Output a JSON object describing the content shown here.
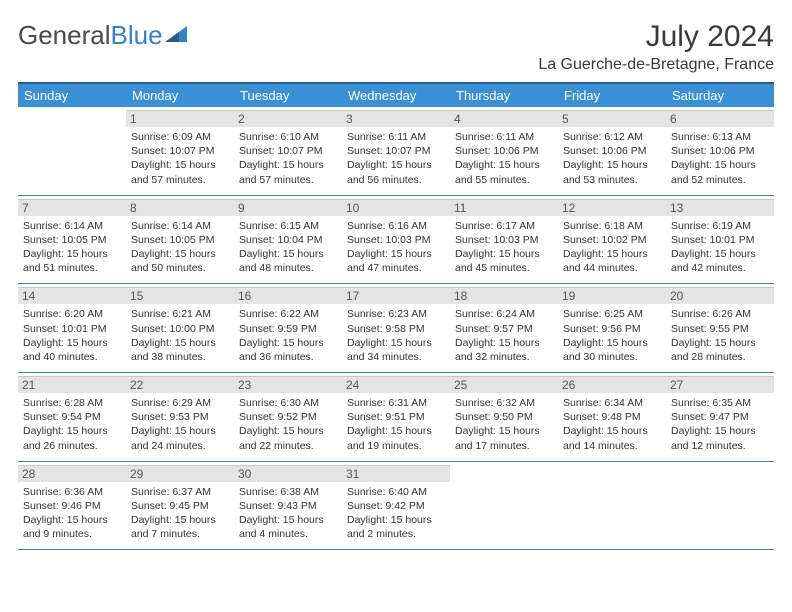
{
  "logo": {
    "part1": "General",
    "part2": "Blue"
  },
  "title": "July 2024",
  "location": "La Guerche-de-Bretagne, France",
  "colors": {
    "header_bg": "#3b8fd4",
    "header_border": "#2a5a8a",
    "daynum_bg": "#e4e4e4",
    "cell_border": "#4a7ba8",
    "text": "#333333",
    "logo_gray": "#4a4a4a",
    "logo_blue": "#3b7fc4"
  },
  "typography": {
    "title_fontsize": 30,
    "location_fontsize": 16,
    "dayheader_fontsize": 13,
    "daynum_fontsize": 12,
    "body_fontsize": 10.5
  },
  "day_headers": [
    "Sunday",
    "Monday",
    "Tuesday",
    "Wednesday",
    "Thursday",
    "Friday",
    "Saturday"
  ],
  "weeks": [
    [
      {
        "num": "",
        "lines": []
      },
      {
        "num": "1",
        "lines": [
          "Sunrise: 6:09 AM",
          "Sunset: 10:07 PM",
          "Daylight: 15 hours",
          "and 57 minutes."
        ]
      },
      {
        "num": "2",
        "lines": [
          "Sunrise: 6:10 AM",
          "Sunset: 10:07 PM",
          "Daylight: 15 hours",
          "and 57 minutes."
        ]
      },
      {
        "num": "3",
        "lines": [
          "Sunrise: 6:11 AM",
          "Sunset: 10:07 PM",
          "Daylight: 15 hours",
          "and 56 minutes."
        ]
      },
      {
        "num": "4",
        "lines": [
          "Sunrise: 6:11 AM",
          "Sunset: 10:06 PM",
          "Daylight: 15 hours",
          "and 55 minutes."
        ]
      },
      {
        "num": "5",
        "lines": [
          "Sunrise: 6:12 AM",
          "Sunset: 10:06 PM",
          "Daylight: 15 hours",
          "and 53 minutes."
        ]
      },
      {
        "num": "6",
        "lines": [
          "Sunrise: 6:13 AM",
          "Sunset: 10:06 PM",
          "Daylight: 15 hours",
          "and 52 minutes."
        ]
      }
    ],
    [
      {
        "num": "7",
        "lines": [
          "Sunrise: 6:14 AM",
          "Sunset: 10:05 PM",
          "Daylight: 15 hours",
          "and 51 minutes."
        ]
      },
      {
        "num": "8",
        "lines": [
          "Sunrise: 6:14 AM",
          "Sunset: 10:05 PM",
          "Daylight: 15 hours",
          "and 50 minutes."
        ]
      },
      {
        "num": "9",
        "lines": [
          "Sunrise: 6:15 AM",
          "Sunset: 10:04 PM",
          "Daylight: 15 hours",
          "and 48 minutes."
        ]
      },
      {
        "num": "10",
        "lines": [
          "Sunrise: 6:16 AM",
          "Sunset: 10:03 PM",
          "Daylight: 15 hours",
          "and 47 minutes."
        ]
      },
      {
        "num": "11",
        "lines": [
          "Sunrise: 6:17 AM",
          "Sunset: 10:03 PM",
          "Daylight: 15 hours",
          "and 45 minutes."
        ]
      },
      {
        "num": "12",
        "lines": [
          "Sunrise: 6:18 AM",
          "Sunset: 10:02 PM",
          "Daylight: 15 hours",
          "and 44 minutes."
        ]
      },
      {
        "num": "13",
        "lines": [
          "Sunrise: 6:19 AM",
          "Sunset: 10:01 PM",
          "Daylight: 15 hours",
          "and 42 minutes."
        ]
      }
    ],
    [
      {
        "num": "14",
        "lines": [
          "Sunrise: 6:20 AM",
          "Sunset: 10:01 PM",
          "Daylight: 15 hours",
          "and 40 minutes."
        ]
      },
      {
        "num": "15",
        "lines": [
          "Sunrise: 6:21 AM",
          "Sunset: 10:00 PM",
          "Daylight: 15 hours",
          "and 38 minutes."
        ]
      },
      {
        "num": "16",
        "lines": [
          "Sunrise: 6:22 AM",
          "Sunset: 9:59 PM",
          "Daylight: 15 hours",
          "and 36 minutes."
        ]
      },
      {
        "num": "17",
        "lines": [
          "Sunrise: 6:23 AM",
          "Sunset: 9:58 PM",
          "Daylight: 15 hours",
          "and 34 minutes."
        ]
      },
      {
        "num": "18",
        "lines": [
          "Sunrise: 6:24 AM",
          "Sunset: 9:57 PM",
          "Daylight: 15 hours",
          "and 32 minutes."
        ]
      },
      {
        "num": "19",
        "lines": [
          "Sunrise: 6:25 AM",
          "Sunset: 9:56 PM",
          "Daylight: 15 hours",
          "and 30 minutes."
        ]
      },
      {
        "num": "20",
        "lines": [
          "Sunrise: 6:26 AM",
          "Sunset: 9:55 PM",
          "Daylight: 15 hours",
          "and 28 minutes."
        ]
      }
    ],
    [
      {
        "num": "21",
        "lines": [
          "Sunrise: 6:28 AM",
          "Sunset: 9:54 PM",
          "Daylight: 15 hours",
          "and 26 minutes."
        ]
      },
      {
        "num": "22",
        "lines": [
          "Sunrise: 6:29 AM",
          "Sunset: 9:53 PM",
          "Daylight: 15 hours",
          "and 24 minutes."
        ]
      },
      {
        "num": "23",
        "lines": [
          "Sunrise: 6:30 AM",
          "Sunset: 9:52 PM",
          "Daylight: 15 hours",
          "and 22 minutes."
        ]
      },
      {
        "num": "24",
        "lines": [
          "Sunrise: 6:31 AM",
          "Sunset: 9:51 PM",
          "Daylight: 15 hours",
          "and 19 minutes."
        ]
      },
      {
        "num": "25",
        "lines": [
          "Sunrise: 6:32 AM",
          "Sunset: 9:50 PM",
          "Daylight: 15 hours",
          "and 17 minutes."
        ]
      },
      {
        "num": "26",
        "lines": [
          "Sunrise: 6:34 AM",
          "Sunset: 9:48 PM",
          "Daylight: 15 hours",
          "and 14 minutes."
        ]
      },
      {
        "num": "27",
        "lines": [
          "Sunrise: 6:35 AM",
          "Sunset: 9:47 PM",
          "Daylight: 15 hours",
          "and 12 minutes."
        ]
      }
    ],
    [
      {
        "num": "28",
        "lines": [
          "Sunrise: 6:36 AM",
          "Sunset: 9:46 PM",
          "Daylight: 15 hours",
          "and 9 minutes."
        ]
      },
      {
        "num": "29",
        "lines": [
          "Sunrise: 6:37 AM",
          "Sunset: 9:45 PM",
          "Daylight: 15 hours",
          "and 7 minutes."
        ]
      },
      {
        "num": "30",
        "lines": [
          "Sunrise: 6:38 AM",
          "Sunset: 9:43 PM",
          "Daylight: 15 hours",
          "and 4 minutes."
        ]
      },
      {
        "num": "31",
        "lines": [
          "Sunrise: 6:40 AM",
          "Sunset: 9:42 PM",
          "Daylight: 15 hours",
          "and 2 minutes."
        ]
      },
      {
        "num": "",
        "lines": []
      },
      {
        "num": "",
        "lines": []
      },
      {
        "num": "",
        "lines": []
      }
    ]
  ]
}
